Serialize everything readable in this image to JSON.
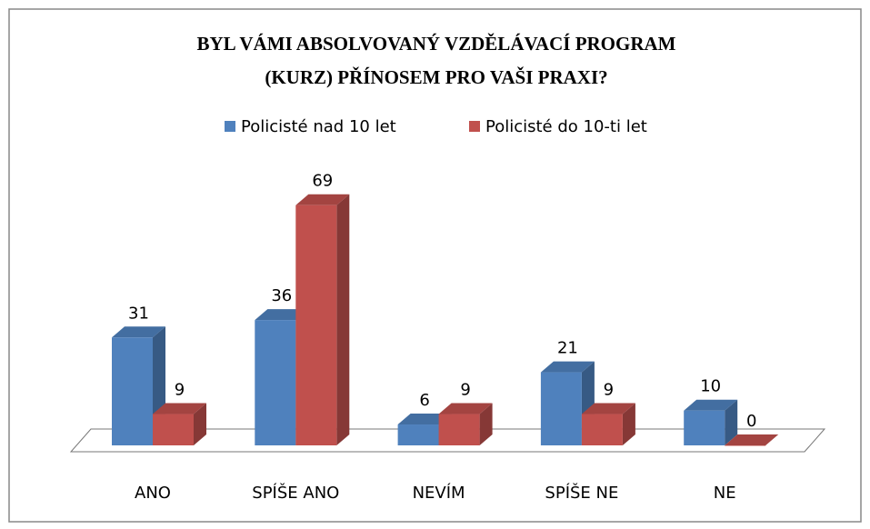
{
  "chart_data": {
    "type": "bar3d",
    "title": [
      "BYL VÁMI ABSOLVOVANÝ VZDĚLÁVACÍ PROGRAM",
      "(KURZ) PŘÍNOSEM PRO VAŠI PRAXI?"
    ],
    "categories": [
      "ANO",
      "SPÍŠE ANO",
      "NEVÍM",
      "SPÍŠE NE",
      "NE"
    ],
    "series": [
      {
        "name": "Policisté nad 10 let",
        "color": "#4f81bd",
        "values": [
          31,
          36,
          6,
          21,
          10
        ]
      },
      {
        "name": "Policisté do 10-ti let",
        "color": "#c0504d",
        "values": [
          9,
          69,
          9,
          9,
          0
        ]
      }
    ],
    "legend": "top"
  }
}
